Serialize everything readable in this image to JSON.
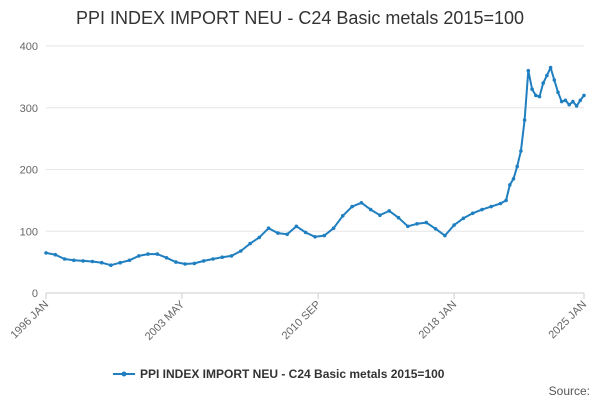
{
  "chart_data": {
    "type": "line",
    "title": "PPI INDEX IMPORT NEU - C24 Basic metals 2015=100",
    "xlabel": "",
    "ylabel": "",
    "ylim": [
      0,
      400
    ],
    "yticks": [
      "0",
      "100",
      "200",
      "300",
      "400"
    ],
    "xlim": [
      1996.0,
      2025.0
    ],
    "xticks": [
      {
        "label": "1996 JAN",
        "value": 1996.0
      },
      {
        "label": "2003 MAY",
        "value": 2003.33
      },
      {
        "label": "2010 SEP",
        "value": 2010.67
      },
      {
        "label": "2018 JAN",
        "value": 2018.0
      },
      {
        "label": "2025 JAN",
        "value": 2025.0
      }
    ],
    "grid": true,
    "legend": "bottom-center",
    "series": [
      {
        "name": "PPI INDEX IMPORT NEU - C24 Basic metals 2015=100",
        "color": "#1f7fc0",
        "x": [
          1996.0,
          1996.5,
          1997.0,
          1997.5,
          1998.0,
          1998.5,
          1999.0,
          1999.5,
          2000.0,
          2000.5,
          2001.0,
          2001.5,
          2002.0,
          2002.5,
          2003.0,
          2003.5,
          2004.0,
          2004.5,
          2005.0,
          2005.5,
          2006.0,
          2006.5,
          2007.0,
          2007.5,
          2008.0,
          2008.5,
          2009.0,
          2009.5,
          2010.0,
          2010.5,
          2011.0,
          2011.5,
          2012.0,
          2012.5,
          2013.0,
          2013.5,
          2014.0,
          2014.5,
          2015.0,
          2015.5,
          2016.0,
          2016.5,
          2017.0,
          2017.5,
          2018.0,
          2018.5,
          2019.0,
          2019.5,
          2020.0,
          2020.5,
          2020.8,
          2021.0,
          2021.2,
          2021.4,
          2021.6,
          2021.8,
          2022.0,
          2022.2,
          2022.4,
          2022.6,
          2022.8,
          2023.0,
          2023.2,
          2023.4,
          2023.6,
          2023.8,
          2024.0,
          2024.2,
          2024.4,
          2024.6,
          2024.8,
          2025.0
        ],
        "values": [
          65,
          62,
          55,
          53,
          52,
          51,
          49,
          45,
          49,
          53,
          60,
          63,
          63,
          57,
          50,
          47,
          48,
          52,
          55,
          58,
          60,
          68,
          80,
          90,
          105,
          97,
          95,
          108,
          98,
          91,
          93,
          105,
          125,
          140,
          146,
          135,
          126,
          133,
          122,
          108,
          112,
          114,
          104,
          93,
          110,
          121,
          129,
          135,
          140,
          145,
          150,
          175,
          185,
          205,
          230,
          280,
          360,
          330,
          320,
          318,
          340,
          352,
          365,
          345,
          325,
          310,
          312,
          305,
          310,
          303,
          312,
          320
        ]
      }
    ],
    "source_label": "Source:"
  }
}
